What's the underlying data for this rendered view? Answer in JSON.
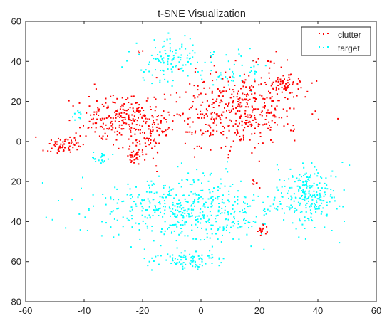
{
  "chart_data": {
    "type": "scatter",
    "title": "t-SNE Visualization",
    "xlabel": "",
    "ylabel": "",
    "xlim": [
      -60,
      60
    ],
    "ylim": [
      -80,
      60
    ],
    "x_ticks": [
      -60,
      -40,
      -20,
      0,
      20,
      40,
      60
    ],
    "y_ticks": [
      60,
      40,
      20,
      0,
      -20,
      -40,
      -60,
      -80
    ],
    "y_tick_labels": [
      "60",
      "40",
      "20",
      "0",
      "20",
      "40",
      "60",
      "80"
    ],
    "grid": false,
    "legend_position": "top-right",
    "series": [
      {
        "name": "clutter",
        "color": "#ff0000",
        "clusters": [
          {
            "cx": -48,
            "cy": -1,
            "sx": 3,
            "sy": 2.5,
            "count": 60
          },
          {
            "cx": -29,
            "cy": 13,
            "sx": 7,
            "sy": 6,
            "count": 150
          },
          {
            "cx": -19,
            "cy": 8,
            "sx": 6,
            "sy": 7,
            "count": 170
          },
          {
            "cx": -22.5,
            "cy": -7,
            "sx": 1.5,
            "sy": 1.5,
            "count": 25
          },
          {
            "cx": 12,
            "cy": 16,
            "sx": 10,
            "sy": 10,
            "count": 420
          },
          {
            "cx": 28,
            "cy": 29,
            "sx": 3,
            "sy": 2.5,
            "count": 60
          },
          {
            "cx": 20.5,
            "cy": -44,
            "sx": 0.8,
            "sy": 1.2,
            "count": 18
          },
          {
            "cx": 18.5,
            "cy": -21,
            "sx": 0.8,
            "sy": 1.2,
            "count": 6
          },
          {
            "cx": -21,
            "cy": 45,
            "sx": 0.5,
            "sy": 0.5,
            "count": 3
          }
        ]
      },
      {
        "name": "target",
        "color": "#00ffff",
        "clusters": [
          {
            "cx": -11,
            "cy": 40,
            "sx": 7,
            "sy": 6,
            "count": 120
          },
          {
            "cx": 12,
            "cy": 36,
            "sx": 5,
            "sy": 5,
            "count": 40
          },
          {
            "cx": -5,
            "cy": -34,
            "sx": 16,
            "sy": 8,
            "count": 520
          },
          {
            "cx": 37,
            "cy": -26,
            "sx": 5,
            "sy": 8,
            "count": 220
          },
          {
            "cx": -6,
            "cy": -59,
            "sx": 7,
            "sy": 2.5,
            "count": 90
          },
          {
            "cx": -43,
            "cy": 13,
            "sx": 1,
            "sy": 1.5,
            "count": 10
          },
          {
            "cx": -35,
            "cy": -8,
            "sx": 2,
            "sy": 2,
            "count": 20
          }
        ]
      }
    ]
  }
}
